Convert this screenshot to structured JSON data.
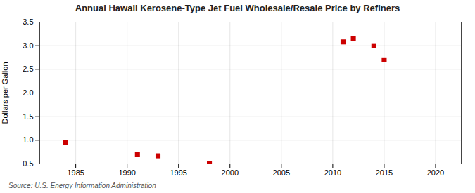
{
  "chart_data": {
    "type": "scatter",
    "title": "Annual Hawaii Kerosene-Type Jet Fuel Wholesale/Resale Price by Refiners",
    "ylabel": "Dollars per Gallon",
    "source": "Source: U.S. Energy Information Administration",
    "x": [
      1984,
      1991,
      1993,
      1998,
      2011,
      2012,
      2014,
      2015
    ],
    "values": [
      0.95,
      0.7,
      0.67,
      0.5,
      3.08,
      3.15,
      3.0,
      2.7
    ],
    "color": "#cc0000",
    "marker": "square",
    "xlim": [
      1981.5,
      2022.5
    ],
    "ylim": [
      0.5,
      3.5
    ],
    "xticks": [
      1985,
      1990,
      1995,
      2000,
      2005,
      2010,
      2015,
      2020
    ],
    "yticks": [
      0.5,
      {
        "value": 1,
        "label": "1.0"
      },
      1.5,
      {
        "value": 2,
        "label": "2.0"
      },
      2.5,
      {
        "value": 3,
        "label": "3.0"
      },
      3.5
    ],
    "grid": true
  }
}
